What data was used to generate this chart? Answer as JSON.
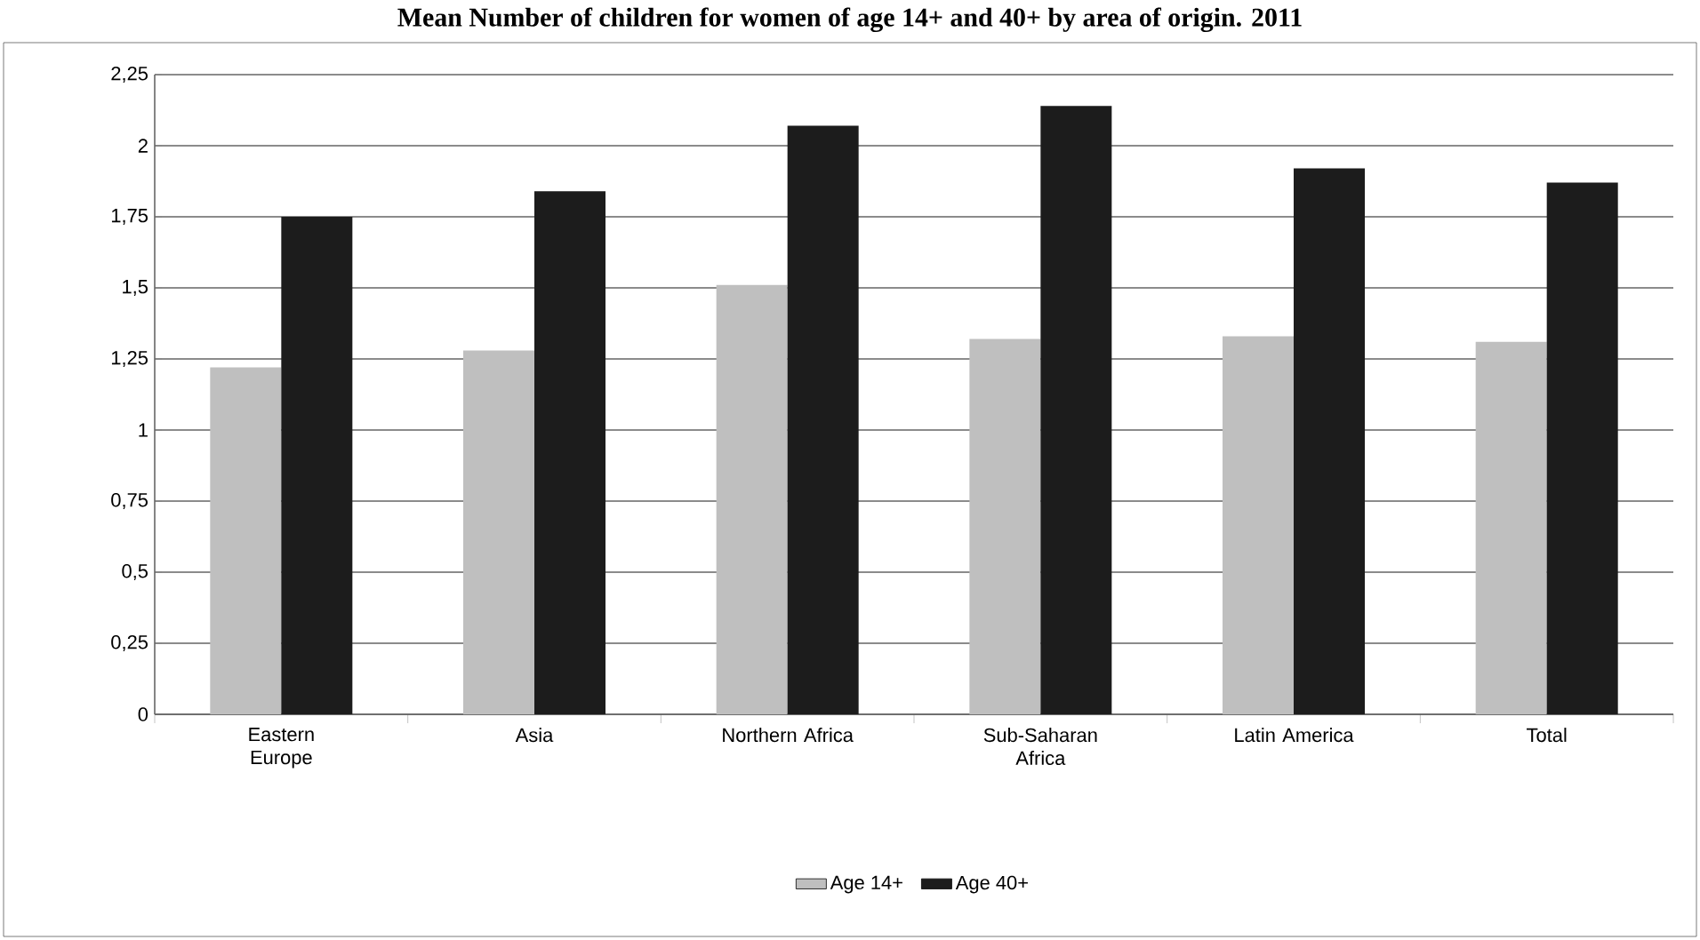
{
  "chart_data": {
    "type": "bar",
    "title": "Mean Number of children for women of age 14+ and 40+ by area of origin. 2011",
    "categories": [
      "Eastern Europe",
      "Asia",
      "Northern Africa",
      "Sub-Saharan Africa",
      "Latin America",
      "Total"
    ],
    "series": [
      {
        "name": "Age 14+",
        "color": "#bfbfbf",
        "values": [
          1.22,
          1.28,
          1.51,
          1.32,
          1.33,
          1.31
        ]
      },
      {
        "name": "Age 40+",
        "color": "#1c1c1c",
        "values": [
          1.75,
          1.84,
          2.07,
          2.14,
          1.92,
          1.87
        ]
      }
    ],
    "ylim": [
      0,
      2.25
    ],
    "yticks": [
      0,
      {
        "value": 0.25,
        "label": "0,25"
      },
      {
        "value": 0.5,
        "label": "0,5"
      },
      {
        "value": 0.75,
        "label": "0,75"
      },
      1,
      {
        "value": 1.25,
        "label": "1,25"
      },
      {
        "value": 1.5,
        "label": "1,5"
      },
      {
        "value": 1.75,
        "label": "1,75"
      },
      2,
      {
        "value": 2.25,
        "label": "2,25"
      }
    ],
    "grid": "y",
    "legend": "bottom"
  }
}
